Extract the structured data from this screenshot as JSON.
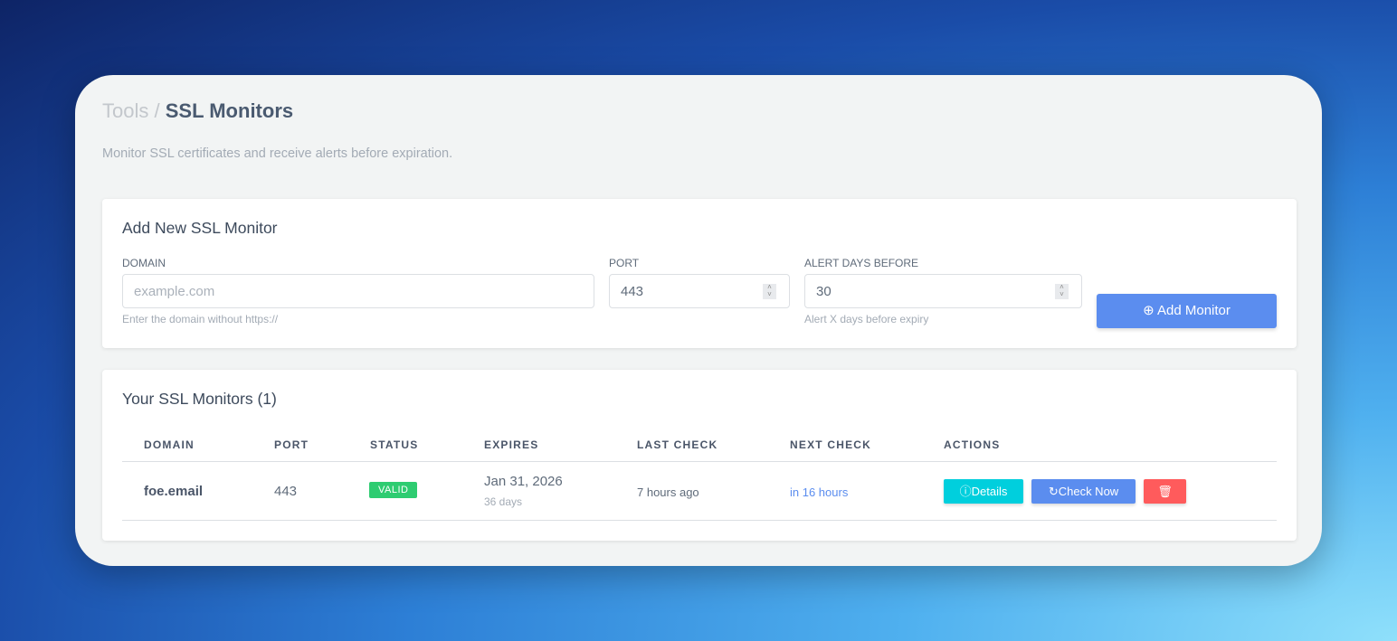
{
  "breadcrumb": {
    "parent": "Tools",
    "separator": "/",
    "current": "SSL Monitors"
  },
  "description": "Monitor SSL certificates and receive alerts before expiration.",
  "add_form": {
    "title": "Add New SSL Monitor",
    "domain": {
      "label": "DOMAIN",
      "placeholder": "example.com",
      "help": "Enter the domain without https://"
    },
    "port": {
      "label": "PORT",
      "value": "443"
    },
    "alert_days": {
      "label": "ALERT DAYS BEFORE",
      "value": "30",
      "help": "Alert X days before expiry"
    },
    "submit_label": "Add Monitor",
    "submit_icon": "plus-circle-icon"
  },
  "monitors": {
    "title": "Your SSL Monitors (1)",
    "columns": [
      "DOMAIN",
      "PORT",
      "STATUS",
      "EXPIRES",
      "LAST CHECK",
      "NEXT CHECK",
      "ACTIONS"
    ],
    "rows": [
      {
        "domain": "foe.email",
        "port": "443",
        "status": "VALID",
        "expires": "Jan 31, 2026",
        "expires_in": "36 days",
        "last_check": "7 hours ago",
        "next_check": "in 16 hours",
        "actions": {
          "details": "Details",
          "check_now": "Check Now",
          "delete_icon": "trash-icon"
        }
      }
    ]
  },
  "colors": {
    "accent": "#5b8def",
    "valid": "#2ecc71",
    "details": "#00cfdd",
    "delete": "#ff5b5c"
  }
}
